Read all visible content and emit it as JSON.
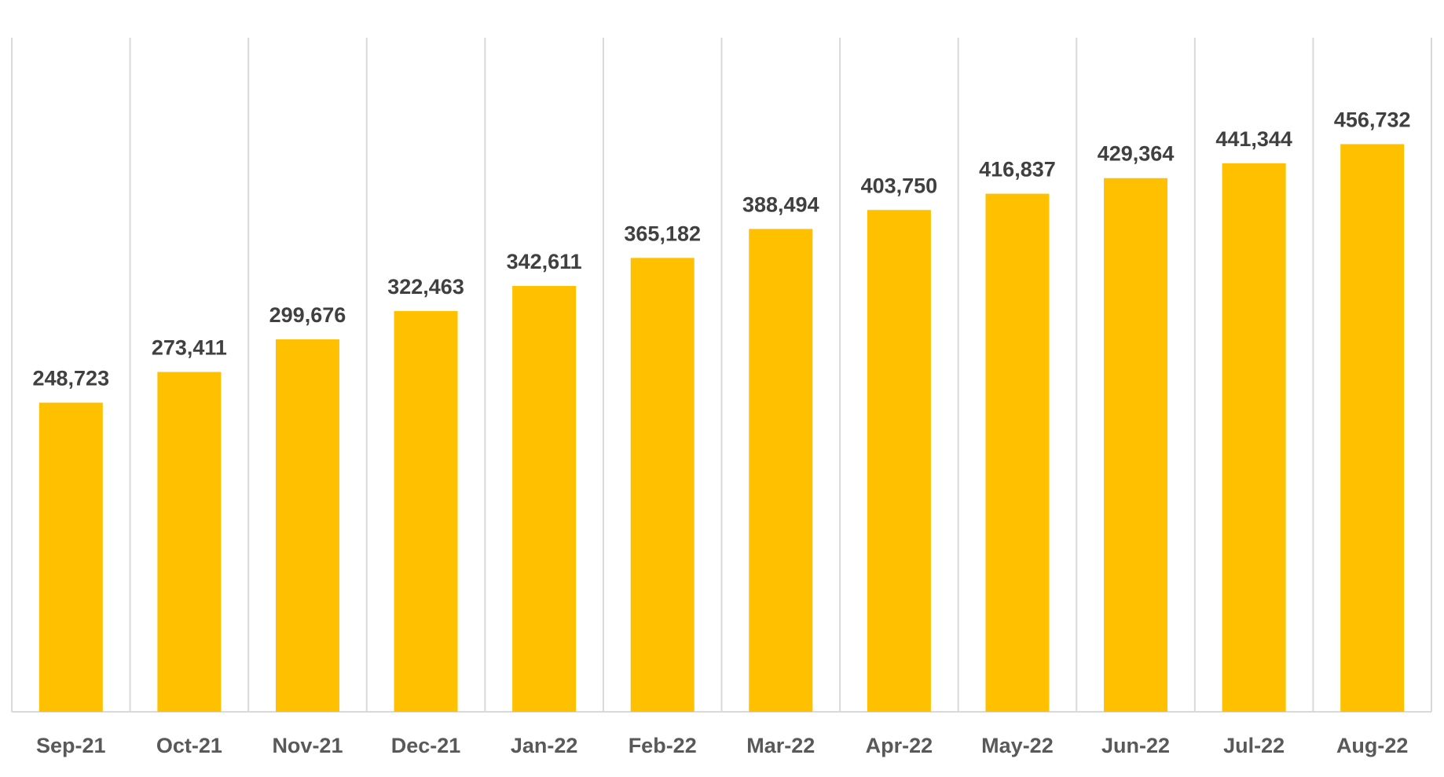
{
  "chart_data": {
    "type": "bar",
    "title": "",
    "xlabel": "",
    "ylabel": "",
    "categories": [
      "Sep-21",
      "Oct-21",
      "Nov-21",
      "Dec-21",
      "Jan-22",
      "Feb-22",
      "Mar-22",
      "Apr-22",
      "May-22",
      "Jun-22",
      "Jul-22",
      "Aug-22"
    ],
    "values": [
      248723,
      273411,
      299676,
      322463,
      342611,
      365182,
      388494,
      403750,
      416837,
      429364,
      441344,
      456732
    ],
    "data_labels": [
      "248,723",
      "273,411",
      "299,676",
      "322,463",
      "342,611",
      "365,182",
      "388,494",
      "403,750",
      "416,837",
      "429,364",
      "441,344",
      "456,732"
    ],
    "ylim": [
      0,
      500000
    ],
    "grid": "vertical category separators",
    "legend": "none",
    "colors": {
      "bar": "#FFC000",
      "grid": "#D9D9D9",
      "data_label": "#404040",
      "tick_label": "#595959"
    }
  }
}
